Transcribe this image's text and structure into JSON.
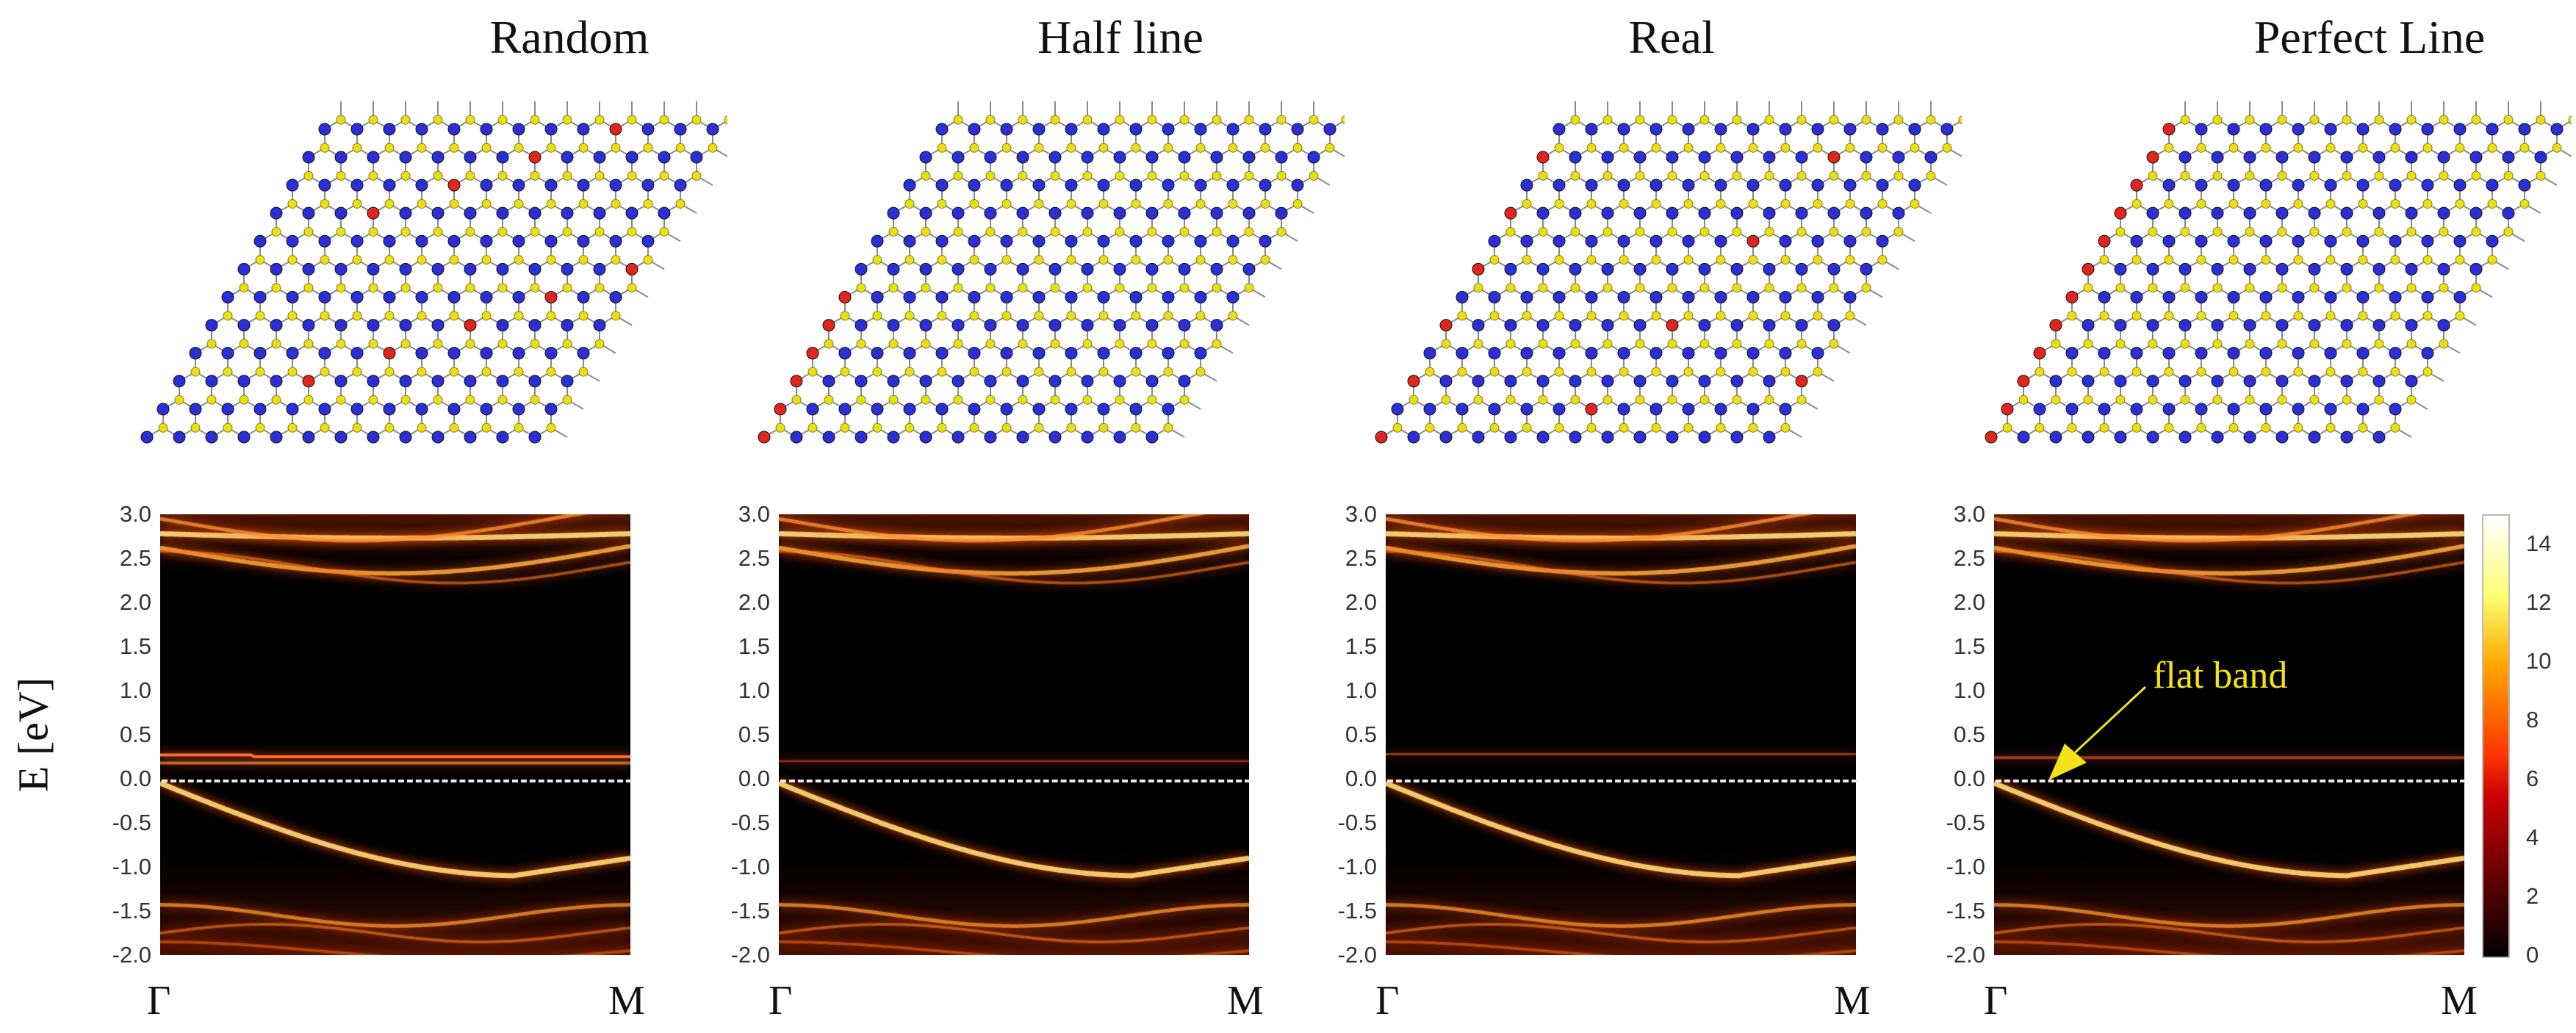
{
  "panels": [
    {
      "title": "Random",
      "kstart": "Γ",
      "kend": "M",
      "variant": "random"
    },
    {
      "title": "Half line",
      "kstart": "Γ",
      "kend": "M",
      "variant": "half"
    },
    {
      "title": "Real",
      "kstart": "Γ",
      "kend": "M",
      "variant": "real"
    },
    {
      "title": "Perfect Line",
      "kstart": "Γ",
      "kend": "M",
      "variant": "perfect"
    }
  ],
  "axis": {
    "ylabel": "E [eV]",
    "yticks": [
      "3.0",
      "2.5",
      "2.0",
      "1.5",
      "1.0",
      "0.5",
      "0.0",
      "-0.5",
      "-1.0",
      "-1.5",
      "-2.0"
    ],
    "ylim": [
      -2.0,
      3.0
    ],
    "fermi_level": 0.0
  },
  "colorbar": {
    "ticks": [
      "14",
      "12",
      "10",
      "8",
      "6",
      "4",
      "2",
      "0"
    ],
    "range": [
      0,
      15
    ]
  },
  "annotation": {
    "text": "flat band",
    "color": "#f2e21a"
  },
  "atom_colors": {
    "metal": "#2b2fd6",
    "chalcogen": "#e8df1a",
    "defect": "#e0251c",
    "bond": "#8a8a8a"
  }
}
